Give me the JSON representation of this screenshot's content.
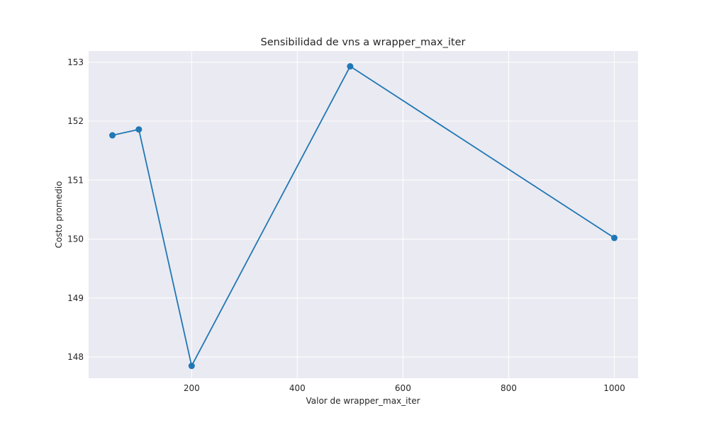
{
  "chart_data": {
    "type": "line",
    "title": "Sensibilidad de vns a wrapper_max_iter",
    "xlabel": "Valor de wrapper_max_iter",
    "ylabel": "Costo promedio",
    "x": [
      50,
      100,
      200,
      500,
      1000
    ],
    "series": [
      {
        "values": [
          151.76,
          151.86,
          147.85,
          152.93,
          150.02
        ]
      }
    ],
    "xlim": [
      5,
      1045
    ],
    "ylim": [
      147.64,
      153.19
    ],
    "xticks": [
      200,
      400,
      600,
      800,
      1000
    ],
    "yticks": [
      148,
      149,
      150,
      151,
      152,
      153
    ],
    "xtick_labels": [
      "200",
      "400",
      "600",
      "800",
      "1000"
    ],
    "ytick_labels": [
      "148",
      "149",
      "150",
      "151",
      "152",
      "153"
    ],
    "grid": true,
    "colors": {
      "line": "#1f77b4",
      "plot_bg": "#eaeaf2",
      "grid": "#ffffff"
    }
  }
}
